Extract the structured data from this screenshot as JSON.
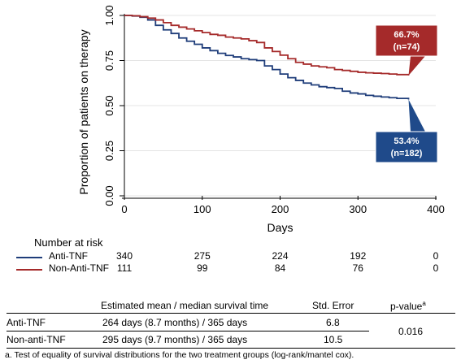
{
  "chart_data": {
    "type": "line",
    "title": "",
    "xlabel": "Days",
    "ylabel": "Proportion of patients on therapy",
    "xlim": [
      0,
      400
    ],
    "ylim": [
      0,
      1
    ],
    "x_ticks": [
      "0",
      "100",
      "200",
      "300",
      "400"
    ],
    "y_ticks": [
      "0.00",
      "0.25",
      "0.50",
      "0.75",
      "1.00"
    ],
    "grid": true,
    "series": [
      {
        "name": "Anti-TNF",
        "color": "#1f3d7a",
        "x": [
          0,
          10,
          20,
          30,
          40,
          50,
          60,
          70,
          80,
          90,
          100,
          110,
          120,
          130,
          140,
          150,
          160,
          170,
          180,
          190,
          200,
          210,
          220,
          230,
          240,
          250,
          260,
          270,
          280,
          290,
          300,
          310,
          320,
          330,
          340,
          350,
          365
        ],
        "y": [
          1.0,
          0.997,
          0.99,
          0.975,
          0.945,
          0.92,
          0.9,
          0.875,
          0.857,
          0.84,
          0.82,
          0.805,
          0.79,
          0.778,
          0.77,
          0.76,
          0.755,
          0.75,
          0.72,
          0.7,
          0.675,
          0.655,
          0.64,
          0.625,
          0.615,
          0.605,
          0.6,
          0.595,
          0.58,
          0.57,
          0.565,
          0.557,
          0.552,
          0.548,
          0.544,
          0.54,
          0.534
        ]
      },
      {
        "name": "Non-Anti-TNF",
        "color": "#a52a2a",
        "x": [
          0,
          10,
          20,
          30,
          40,
          50,
          60,
          70,
          80,
          90,
          100,
          110,
          120,
          130,
          140,
          150,
          160,
          170,
          180,
          190,
          200,
          210,
          220,
          230,
          240,
          250,
          260,
          270,
          280,
          290,
          300,
          310,
          320,
          330,
          340,
          350,
          365
        ],
        "y": [
          1.0,
          0.998,
          0.993,
          0.985,
          0.975,
          0.96,
          0.945,
          0.935,
          0.925,
          0.915,
          0.905,
          0.895,
          0.89,
          0.88,
          0.875,
          0.87,
          0.86,
          0.85,
          0.82,
          0.8,
          0.78,
          0.76,
          0.74,
          0.73,
          0.72,
          0.715,
          0.71,
          0.7,
          0.695,
          0.69,
          0.685,
          0.682,
          0.68,
          0.678,
          0.675,
          0.672,
          0.667
        ]
      }
    ],
    "annotations": [
      {
        "series": "Non-Anti-TNF",
        "line1": "66.7%",
        "line2": "(n=74)",
        "color": "#a52a2a",
        "x": 365,
        "y": 0.667
      },
      {
        "series": "Anti-TNF",
        "line1": "53.4%",
        "line2": "(n=182)",
        "color": "#1f4a8a",
        "x": 365,
        "y": 0.534
      }
    ]
  },
  "risk_table": {
    "title": "Number at risk",
    "rows": [
      {
        "label": "Anti-TNF",
        "color": "#1f3d7a",
        "values": [
          "340",
          "275",
          "224",
          "192",
          "0"
        ]
      },
      {
        "label": "Non-Anti-TNF",
        "color": "#a52a2a",
        "values": [
          "111",
          "99",
          "84",
          "76",
          "0"
        ]
      }
    ]
  },
  "survival_table": {
    "headers": [
      "Estimated mean / median survival time",
      "Std. Error",
      "p-value"
    ],
    "p_superscript": "a",
    "rows": [
      {
        "label": "Anti-TNF",
        "estimate": "264 days (8.7 months) / 365 days",
        "std_error": "6.8"
      },
      {
        "label": "Non-anti-TNF",
        "estimate": "295 days (9.7 months) / 365 days",
        "std_error": "10.5"
      }
    ],
    "p_value": "0.016"
  },
  "footnote": "a. Test of equality of survival distributions for the two treatment groups (log-rank/mantel cox)."
}
